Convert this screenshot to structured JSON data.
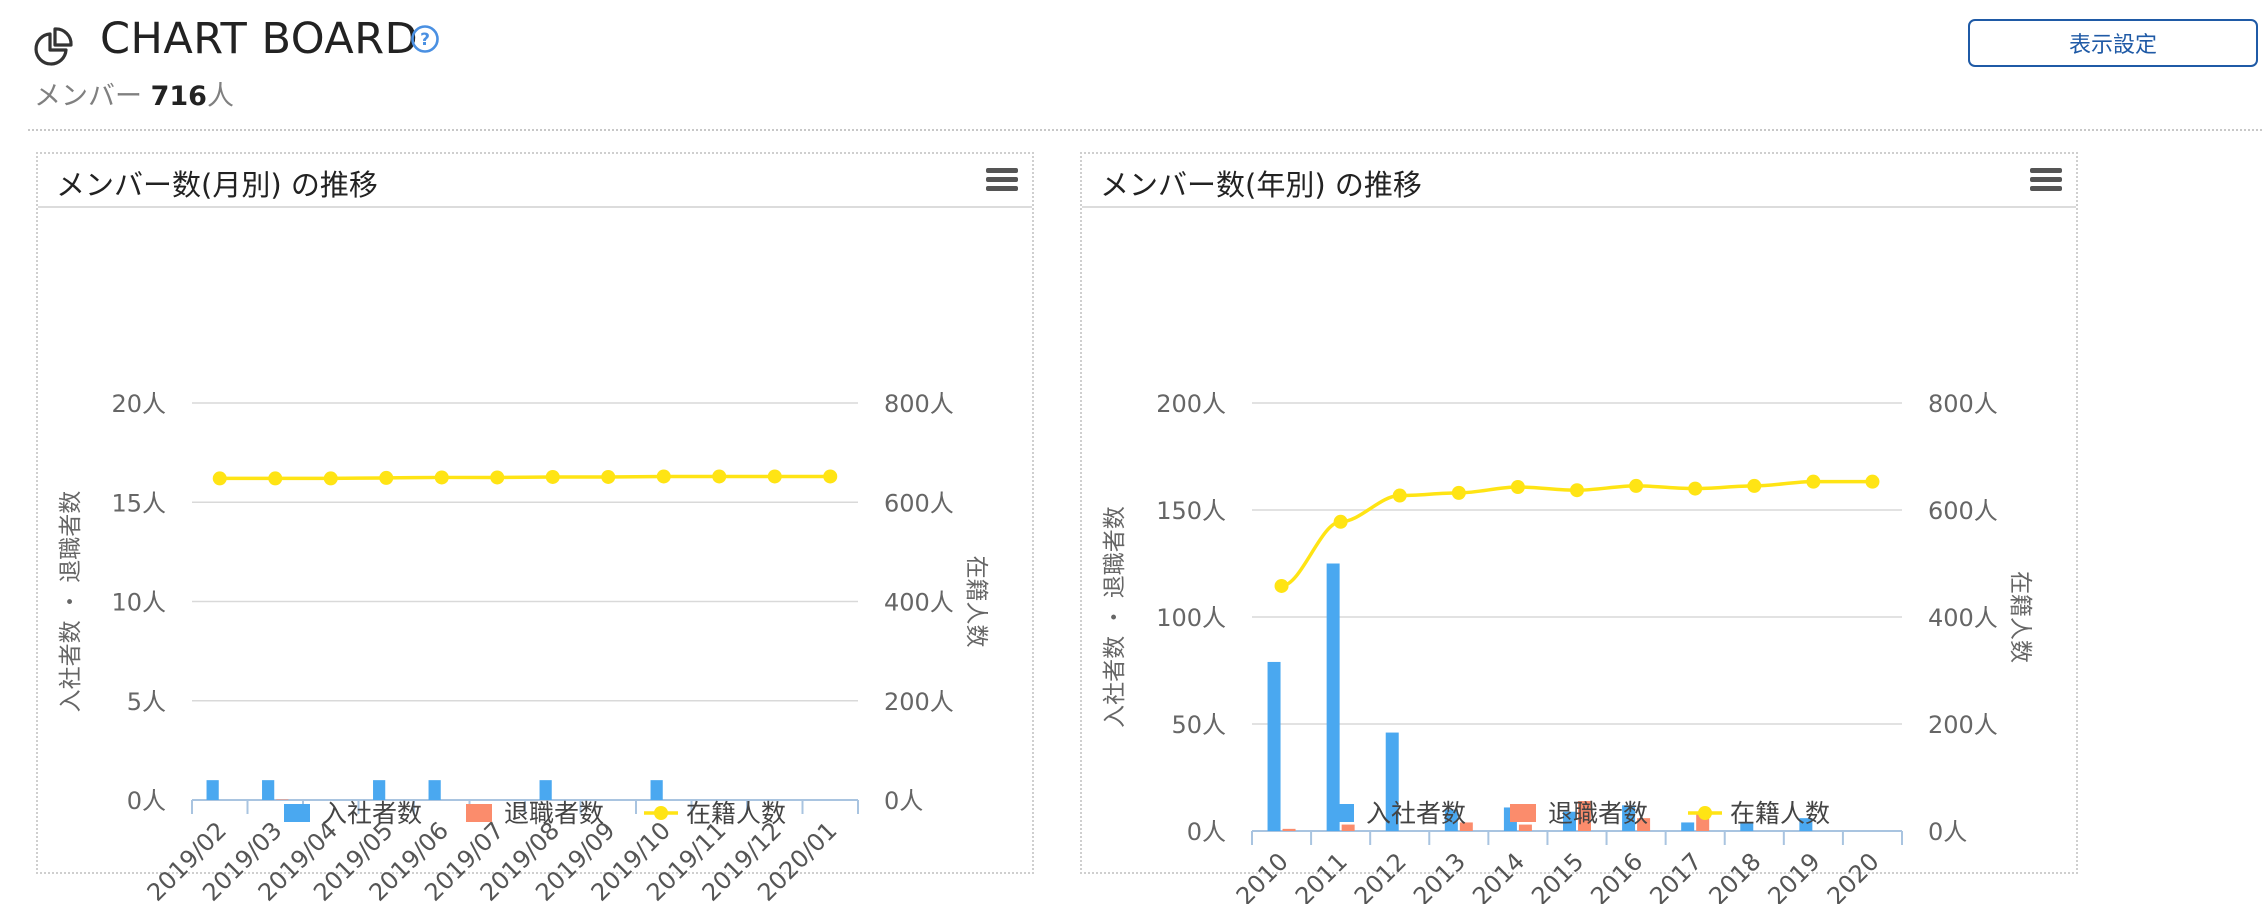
{
  "header": {
    "app_icon": "pie-chart-icon",
    "title": "CHART BOARD",
    "help_icon": "question-circle-icon",
    "member_label": "メンバー",
    "member_count": "716",
    "member_unit": "人",
    "settings_label": "表示設定"
  },
  "colors": {
    "joined": "#4aa8f0",
    "left": "#fb8c6c",
    "enrolled": "#ffe414",
    "accent": "#1f5aa6"
  },
  "chart_data": [
    {
      "type": "bar",
      "title": "メンバー数(月別) の推移",
      "menu_icon": "hamburger-menu-icon",
      "categories": [
        "2019/02",
        "2019/03",
        "2019/04",
        "2019/05",
        "2019/06",
        "2019/07",
        "2019/08",
        "2019/09",
        "2019/10",
        "2019/11",
        "2019/12",
        "2020/01"
      ],
      "ylabel": "入社者数 ・ 退職者数",
      "y2label": "在籍人数",
      "ylim": [
        0,
        20
      ],
      "yticks": [
        "0人",
        "5人",
        "10人",
        "15人",
        "20人"
      ],
      "ytick_values": [
        0,
        5,
        10,
        15,
        20
      ],
      "y2lim": [
        0,
        800
      ],
      "y2ticks": [
        "0人",
        "200人",
        "400人",
        "600人",
        "800人"
      ],
      "y2tick_values": [
        0,
        200,
        400,
        600,
        800
      ],
      "grid": true,
      "legend_position": "bottom",
      "series": [
        {
          "name": "入社者数",
          "type": "bar",
          "axis": "left",
          "values": [
            1,
            1,
            0,
            1,
            1,
            0,
            1,
            0,
            1,
            0,
            0,
            0
          ]
        },
        {
          "name": "退職者数",
          "type": "bar",
          "axis": "right",
          "values": [
            0,
            1,
            0,
            0,
            0,
            0,
            0,
            0,
            0,
            0,
            0,
            0
          ]
        },
        {
          "name": "在籍人数",
          "type": "line",
          "axis": "right",
          "values": [
            648,
            648,
            648,
            649,
            650,
            650,
            651,
            651,
            652,
            652,
            652,
            652
          ]
        }
      ]
    },
    {
      "type": "bar",
      "title": "メンバー数(年別) の推移",
      "menu_icon": "hamburger-menu-icon",
      "categories": [
        "2010",
        "2011",
        "2012",
        "2013",
        "2014",
        "2015",
        "2016",
        "2017",
        "2018",
        "2019",
        "2020"
      ],
      "ylabel": "入社者数 ・ 退職者数",
      "y2label": "在籍人数",
      "ylim": [
        0,
        200
      ],
      "yticks": [
        "0人",
        "50人",
        "100人",
        "150人",
        "200人"
      ],
      "ytick_values": [
        0,
        50,
        100,
        150,
        200
      ],
      "y2lim": [
        0,
        800
      ],
      "y2ticks": [
        "0人",
        "200人",
        "400人",
        "600人",
        "800人"
      ],
      "y2tick_values": [
        0,
        200,
        400,
        600,
        800
      ],
      "grid": true,
      "legend_position": "bottom",
      "series": [
        {
          "name": "入社者数",
          "type": "bar",
          "axis": "left",
          "values": [
            79,
            125,
            46,
            10,
            11,
            9,
            12,
            4,
            4,
            6,
            0
          ]
        },
        {
          "name": "退職者数",
          "type": "bar",
          "axis": "left",
          "values": [
            1,
            3,
            0,
            4,
            3,
            14,
            6,
            8,
            0,
            0,
            0
          ]
        },
        {
          "name": "在籍人数",
          "type": "line",
          "axis": "right",
          "values": [
            458,
            578,
            627,
            632,
            643,
            637,
            645,
            640,
            645,
            653,
            653
          ]
        }
      ]
    }
  ]
}
